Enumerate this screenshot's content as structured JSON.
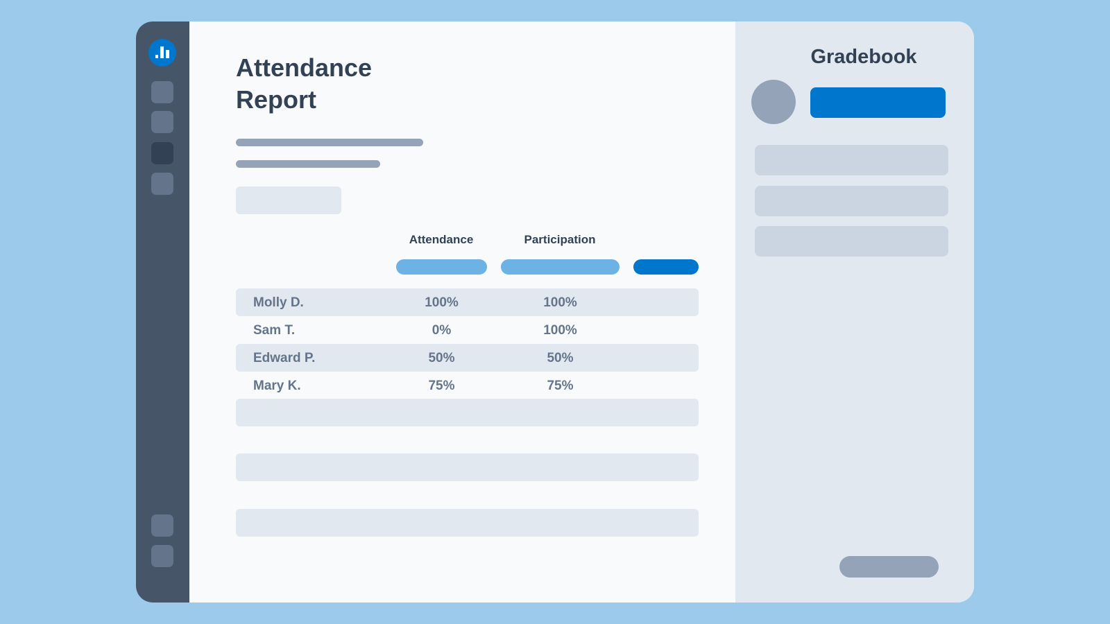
{
  "header": {
    "title": "Attendance Report"
  },
  "sidebar_panel": {
    "title": "Gradebook"
  },
  "table": {
    "columns": [
      "Attendance",
      "Participation"
    ],
    "rows": [
      [
        "Molly D.",
        "100%",
        "100%"
      ],
      [
        "Sam T.",
        "0%",
        "100%"
      ],
      [
        "Edward P.",
        "50%",
        "50%"
      ],
      [
        "Mary K.",
        "75%",
        "75%"
      ]
    ]
  }
}
